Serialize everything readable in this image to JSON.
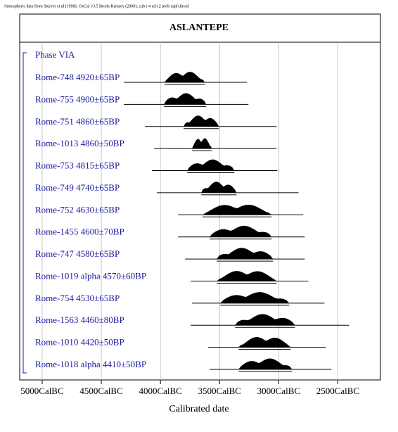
{
  "chart_data": {
    "type": "oxcal",
    "note_text": "Atmospheric data from Stuiver et al (1998); OxCal v3.5 Bronk Ramsey (2000); cub r:4 sd:12 prob usp[chron]",
    "title": "ASLANTEPE",
    "group_label": "Phase VIA",
    "xlabel": "Calibrated date",
    "xlim": [
      5190,
      2140
    ],
    "xticks": [
      {
        "value": 5000,
        "label": "5000CalBC"
      },
      {
        "value": 4500,
        "label": "4500CalBC"
      },
      {
        "value": 4000,
        "label": "4000CalBC"
      },
      {
        "value": 3500,
        "label": "3500CalBC"
      },
      {
        "value": 3000,
        "label": "3000CalBC"
      },
      {
        "value": 2500,
        "label": "2500CalBC"
      }
    ],
    "grid": true,
    "label_color": "#1a1aa0",
    "color": "#000000",
    "rows": [
      {
        "label": "Rome-748  4920±65BP",
        "range": [
          4310,
          3268
        ],
        "mass": [
          3965,
          3625
        ]
      },
      {
        "label": "Rome-755  4900±65BP",
        "range": [
          4310,
          3256
        ],
        "mass": [
          3970,
          3613
        ]
      },
      {
        "label": "Rome-751  4860±65BP",
        "range": [
          4131,
          3018
        ],
        "mass": [
          3804,
          3506
        ]
      },
      {
        "label": "Rome-1013  4860±50BP",
        "range": [
          4054,
          3018
        ],
        "mass": [
          3733,
          3566
        ]
      },
      {
        "label": "Rome-753  4815±65BP",
        "range": [
          4072,
          3012
        ],
        "mass": [
          3774,
          3375
        ]
      },
      {
        "label": "Rome-749  4740±65BP",
        "range": [
          4030,
          2833
        ],
        "mass": [
          3655,
          3357
        ]
      },
      {
        "label": "Rome-752  4630±65BP",
        "range": [
          3851,
          2792
        ],
        "mass": [
          3643,
          3060
        ]
      },
      {
        "label": "Rome-1455  4600±70BP",
        "range": [
          3851,
          2780
        ],
        "mass": [
          3584,
          3060
        ]
      },
      {
        "label": "Rome-747  4580±65BP",
        "range": [
          3792,
          2780
        ],
        "mass": [
          3524,
          3048
        ]
      },
      {
        "label": "Rome-1019 alpha  4570±60BP",
        "range": [
          3744,
          2750
        ],
        "mass": [
          3524,
          3018
        ]
      },
      {
        "label": "Rome-754  4530±65BP",
        "range": [
          3733,
          2613
        ],
        "mass": [
          3494,
          2911
        ]
      },
      {
        "label": "Rome-1563  4460±80BP",
        "range": [
          3744,
          2405
        ],
        "mass": [
          3369,
          2863
        ]
      },
      {
        "label": "Rome-1010  4420±50BP",
        "range": [
          3596,
          2602
        ],
        "mass": [
          3340,
          2899
        ]
      },
      {
        "label": "Rome-1018 alpha  4410±50BP",
        "range": [
          3584,
          2554
        ],
        "mass": [
          3340,
          2887
        ]
      }
    ]
  }
}
